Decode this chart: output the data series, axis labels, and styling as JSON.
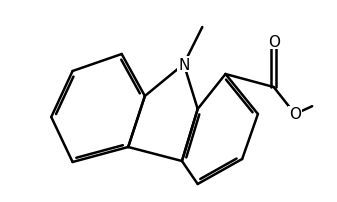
{
  "background_color": "#ffffff",
  "line_color": "#000000",
  "line_width": 1.8,
  "font_size": 11,
  "xlim": [
    0,
    10
  ],
  "ylim": [
    0,
    6.5
  ],
  "figsize": [
    3.37,
    2.03
  ],
  "dpi": 100
}
